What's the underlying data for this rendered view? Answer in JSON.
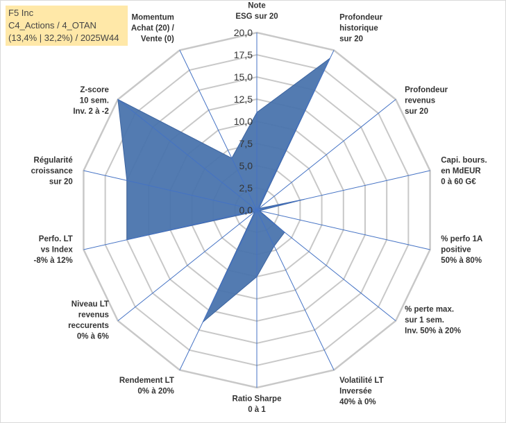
{
  "info": {
    "line1": "F5 Inc",
    "line2": "C4_Actions / 4_OTAN",
    "line3": "(13,4% | 32,2%) / 2025W44"
  },
  "colors": {
    "fill": "#4a74ad",
    "grid": "#c8c8c8",
    "spoke": "#4472c4",
    "info_bg": "#ffe8a8"
  },
  "chart_data": {
    "type": "radar",
    "title": "",
    "rmax": 20,
    "ticks": [
      "0,0",
      "2,5",
      "5,0",
      "7,5",
      "10,0",
      "12,5",
      "15,0",
      "17,5",
      "20,0"
    ],
    "axes": [
      [
        "Note",
        "ESG sur 20"
      ],
      [
        "Profondeur",
        "historique",
        "sur 20"
      ],
      [
        "Profondeur",
        "revenus",
        "sur 20"
      ],
      [
        "Capi. bours.",
        "en MdEUR",
        "0 à 60 G€"
      ],
      [
        "% perfo 1A",
        "positive",
        "50% à 80%"
      ],
      [
        "% perte max.",
        "sur 1 sem.",
        "Inv. 50% à 20%"
      ],
      [
        "Volatilité LT",
        "Inversée",
        "40% à 0%"
      ],
      [
        "Ratio Sharpe",
        "0 à 1"
      ],
      [
        "Rendement LT",
        "0% à 20%"
      ],
      [
        "Niveau LT",
        "revenus",
        "reccurents",
        "0% à 6%"
      ],
      [
        "Perfo. LT",
        "vs Index",
        "-8% à 12%"
      ],
      [
        "Régularité",
        "croissance",
        "sur 20"
      ],
      [
        "Z-score",
        "10 sem.",
        "Inv. 2 à -2"
      ],
      [
        "Momentum",
        "Achat (20) /",
        "Vente (0)"
      ]
    ],
    "values": [
      11,
      19,
      0.3,
      5.5,
      0.3,
      4,
      4.5,
      7.5,
      14,
      0.3,
      15,
      15,
      20,
      6.5
    ]
  }
}
